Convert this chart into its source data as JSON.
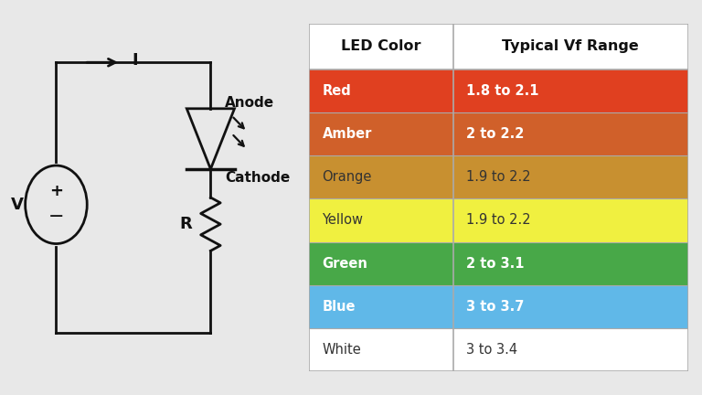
{
  "bg_color": "#e8e8e8",
  "circuit_bg": "#ffffff",
  "table_rows": [
    {
      "color_name": "Red",
      "vf_range": "1.8 to 2.1",
      "bg": "#e04020",
      "text_color": "#ffffff",
      "bold": true
    },
    {
      "color_name": "Amber",
      "vf_range": "2 to 2.2",
      "bg": "#d0602a",
      "text_color": "#ffffff",
      "bold": true
    },
    {
      "color_name": "Orange",
      "vf_range": "1.9 to 2.2",
      "bg": "#c89030",
      "text_color": "#333333",
      "bold": false
    },
    {
      "color_name": "Yellow",
      "vf_range": "1.9 to 2.2",
      "bg": "#f0f040",
      "text_color": "#333333",
      "bold": false
    },
    {
      "color_name": "Green",
      "vf_range": "2 to 3.1",
      "bg": "#48a848",
      "text_color": "#ffffff",
      "bold": true
    },
    {
      "color_name": "Blue",
      "vf_range": "3 to 3.7",
      "bg": "#60b8e8",
      "text_color": "#ffffff",
      "bold": true
    },
    {
      "color_name": "White",
      "vf_range": "3 to 3.4",
      "bg": "#ffffff",
      "text_color": "#333333",
      "bold": false
    }
  ],
  "header_color_name": "LED Color",
  "header_vf": "Typical Vf Range",
  "header_bg": "#ffffff",
  "header_text_color": "#111111",
  "line_color": "#111111",
  "border_color": "#aaaaaa"
}
